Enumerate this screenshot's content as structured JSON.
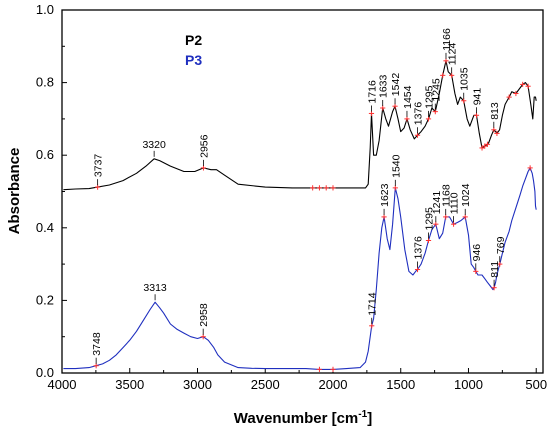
{
  "chart_data": {
    "type": "line",
    "xlabel": "Wavenumber [cm",
    "xlabel_sup": "-1",
    "xlabel_close": "]",
    "ylabel": "Absorbance",
    "xlim": [
      4000,
      450
    ],
    "ylim": [
      0.0,
      1.0
    ],
    "x_reversed": true,
    "grid": false,
    "legend_position": "upper-left-inside",
    "x_ticks": [
      4000,
      3500,
      3000,
      2500,
      2000,
      1500,
      1000,
      500
    ],
    "x_tick_labels": [
      "4000",
      "3500",
      "3000",
      "2500",
      "2000",
      "1500",
      "1000",
      "500"
    ],
    "y_ticks": [
      0.0,
      0.2,
      0.4,
      0.6,
      0.8,
      1.0
    ],
    "y_tick_labels": [
      "0.0",
      "0.2",
      "0.4",
      "0.6",
      "0.8",
      "1.0"
    ],
    "series": [
      {
        "name": "P2",
        "color": "#000000",
        "x": [
          3990,
          3900,
          3800,
          3737,
          3650,
          3550,
          3450,
          3380,
          3320,
          3280,
          3200,
          3100,
          3020,
          2956,
          2900,
          2860,
          2800,
          2700,
          2500,
          2300,
          2150,
          2100,
          2050,
          2000,
          1900,
          1800,
          1760,
          1740,
          1725,
          1716,
          1700,
          1680,
          1660,
          1633,
          1610,
          1590,
          1560,
          1542,
          1520,
          1500,
          1475,
          1454,
          1430,
          1400,
          1376,
          1350,
          1320,
          1295,
          1270,
          1245,
          1215,
          1190,
          1166,
          1150,
          1124,
          1100,
          1080,
          1060,
          1035,
          1010,
          990,
          970,
          960,
          941,
          920,
          900,
          880,
          860,
          850,
          830,
          813,
          800,
          790,
          770,
          750,
          730,
          700,
          680,
          650,
          620,
          600,
          580,
          560,
          540,
          525,
          515,
          505,
          500
        ],
        "y": [
          0.505,
          0.507,
          0.508,
          0.512,
          0.518,
          0.53,
          0.55,
          0.57,
          0.59,
          0.585,
          0.57,
          0.555,
          0.555,
          0.565,
          0.56,
          0.56,
          0.545,
          0.52,
          0.512,
          0.51,
          0.51,
          0.51,
          0.51,
          0.51,
          0.51,
          0.51,
          0.51,
          0.52,
          0.62,
          0.715,
          0.6,
          0.6,
          0.64,
          0.73,
          0.7,
          0.68,
          0.72,
          0.735,
          0.7,
          0.665,
          0.675,
          0.7,
          0.67,
          0.645,
          0.655,
          0.665,
          0.68,
          0.7,
          0.73,
          0.72,
          0.77,
          0.82,
          0.86,
          0.83,
          0.82,
          0.77,
          0.74,
          0.76,
          0.75,
          0.7,
          0.68,
          0.7,
          0.71,
          0.71,
          0.66,
          0.62,
          0.625,
          0.63,
          0.635,
          0.655,
          0.67,
          0.665,
          0.66,
          0.67,
          0.71,
          0.74,
          0.76,
          0.775,
          0.77,
          0.785,
          0.795,
          0.8,
          0.79,
          0.74,
          0.7,
          0.76,
          0.76,
          0.75
        ]
      },
      {
        "name": "P3",
        "color": "#1f2fbf",
        "x": [
          3990,
          3900,
          3800,
          3748,
          3700,
          3650,
          3600,
          3550,
          3500,
          3450,
          3400,
          3350,
          3313,
          3280,
          3250,
          3200,
          3150,
          3100,
          3050,
          3000,
          2958,
          2920,
          2880,
          2850,
          2800,
          2700,
          2600,
          2500,
          2400,
          2300,
          2200,
          2100,
          2000,
          1900,
          1800,
          1760,
          1740,
          1725,
          1714,
          1700,
          1680,
          1660,
          1640,
          1623,
          1600,
          1580,
          1560,
          1540,
          1520,
          1500,
          1470,
          1440,
          1410,
          1390,
          1376,
          1350,
          1320,
          1295,
          1270,
          1241,
          1215,
          1190,
          1168,
          1140,
          1110,
          1080,
          1055,
          1024,
          1000,
          980,
          960,
          946,
          930,
          900,
          880,
          860,
          840,
          820,
          811,
          800,
          790,
          780,
          769,
          750,
          730,
          700,
          680,
          650,
          620,
          600,
          580,
          560,
          545,
          530,
          520,
          510,
          505,
          500
        ],
        "y": [
          0.012,
          0.012,
          0.015,
          0.02,
          0.025,
          0.035,
          0.05,
          0.07,
          0.09,
          0.115,
          0.145,
          0.175,
          0.195,
          0.18,
          0.165,
          0.135,
          0.12,
          0.11,
          0.1,
          0.095,
          0.1,
          0.09,
          0.07,
          0.05,
          0.03,
          0.015,
          0.013,
          0.012,
          0.012,
          0.012,
          0.012,
          0.01,
          0.01,
          0.012,
          0.015,
          0.03,
          0.06,
          0.1,
          0.13,
          0.15,
          0.23,
          0.33,
          0.4,
          0.43,
          0.37,
          0.34,
          0.41,
          0.51,
          0.48,
          0.43,
          0.34,
          0.28,
          0.27,
          0.28,
          0.285,
          0.3,
          0.33,
          0.365,
          0.395,
          0.41,
          0.37,
          0.385,
          0.43,
          0.43,
          0.41,
          0.415,
          0.42,
          0.43,
          0.38,
          0.3,
          0.29,
          0.28,
          0.27,
          0.27,
          0.26,
          0.25,
          0.24,
          0.23,
          0.235,
          0.25,
          0.27,
          0.285,
          0.3,
          0.33,
          0.36,
          0.39,
          0.42,
          0.455,
          0.49,
          0.515,
          0.535,
          0.555,
          0.565,
          0.55,
          0.53,
          0.5,
          0.46,
          0.45
        ]
      }
    ],
    "peak_markers": [
      {
        "series": "P2",
        "x": 3737,
        "y": 0.512
      },
      {
        "series": "P2",
        "x": 2956,
        "y": 0.565
      },
      {
        "series": "P2",
        "x": 2150,
        "y": 0.51
      },
      {
        "series": "P2",
        "x": 2100,
        "y": 0.51
      },
      {
        "series": "P2",
        "x": 2050,
        "y": 0.51
      },
      {
        "series": "P2",
        "x": 2000,
        "y": 0.51
      },
      {
        "series": "P2",
        "x": 1716,
        "y": 0.715
      },
      {
        "series": "P2",
        "x": 1633,
        "y": 0.73
      },
      {
        "series": "P2",
        "x": 1542,
        "y": 0.735
      },
      {
        "series": "P2",
        "x": 1454,
        "y": 0.7
      },
      {
        "series": "P2",
        "x": 1376,
        "y": 0.655
      },
      {
        "series": "P2",
        "x": 1295,
        "y": 0.7
      },
      {
        "series": "P2",
        "x": 1245,
        "y": 0.72
      },
      {
        "series": "P2",
        "x": 1190,
        "y": 0.82
      },
      {
        "series": "P2",
        "x": 1166,
        "y": 0.86
      },
      {
        "series": "P2",
        "x": 1124,
        "y": 0.82
      },
      {
        "series": "P2",
        "x": 1035,
        "y": 0.75
      },
      {
        "series": "P2",
        "x": 941,
        "y": 0.71
      },
      {
        "series": "P2",
        "x": 900,
        "y": 0.62
      },
      {
        "series": "P2",
        "x": 880,
        "y": 0.625
      },
      {
        "series": "P2",
        "x": 860,
        "y": 0.63
      },
      {
        "series": "P2",
        "x": 813,
        "y": 0.67
      },
      {
        "series": "P2",
        "x": 790,
        "y": 0.66
      },
      {
        "series": "P2",
        "x": 700,
        "y": 0.76
      },
      {
        "series": "P2",
        "x": 650,
        "y": 0.77
      },
      {
        "series": "P2",
        "x": 600,
        "y": 0.795
      },
      {
        "series": "P2",
        "x": 560,
        "y": 0.79
      },
      {
        "series": "P3",
        "x": 3748,
        "y": 0.02
      },
      {
        "series": "P3",
        "x": 2958,
        "y": 0.1
      },
      {
        "series": "P3",
        "x": 2100,
        "y": 0.01
      },
      {
        "series": "P3",
        "x": 2000,
        "y": 0.01
      },
      {
        "series": "P3",
        "x": 1714,
        "y": 0.13
      },
      {
        "series": "P3",
        "x": 1623,
        "y": 0.43
      },
      {
        "series": "P3",
        "x": 1540,
        "y": 0.51
      },
      {
        "series": "P3",
        "x": 1376,
        "y": 0.285
      },
      {
        "series": "P3",
        "x": 1295,
        "y": 0.365
      },
      {
        "series": "P3",
        "x": 1241,
        "y": 0.41
      },
      {
        "series": "P3",
        "x": 1168,
        "y": 0.43
      },
      {
        "series": "P3",
        "x": 1110,
        "y": 0.41
      },
      {
        "series": "P3",
        "x": 1024,
        "y": 0.43
      },
      {
        "series": "P3",
        "x": 946,
        "y": 0.28
      },
      {
        "series": "P3",
        "x": 811,
        "y": 0.235
      },
      {
        "series": "P3",
        "x": 769,
        "y": 0.3
      },
      {
        "series": "P3",
        "x": 545,
        "y": 0.565
      }
    ],
    "peak_marker_color": "#ff3030",
    "annotations": [
      {
        "text": "3737",
        "x": 3737,
        "y": 0.512,
        "rotate": true
      },
      {
        "text": "3320",
        "x": 3320,
        "y": 0.59,
        "rotate": false
      },
      {
        "text": "2956",
        "x": 2956,
        "y": 0.565,
        "rotate": true
      },
      {
        "text": "1716",
        "x": 1716,
        "y": 0.715,
        "rotate": true
      },
      {
        "text": "1633",
        "x": 1633,
        "y": 0.73,
        "rotate": true
      },
      {
        "text": "1542",
        "x": 1542,
        "y": 0.735,
        "rotate": true
      },
      {
        "text": "1454",
        "x": 1454,
        "y": 0.7,
        "rotate": true
      },
      {
        "text": "1376",
        "x": 1376,
        "y": 0.655,
        "rotate": true
      },
      {
        "text": "1295",
        "x": 1295,
        "y": 0.7,
        "rotate": true
      },
      {
        "text": "1245",
        "x": 1245,
        "y": 0.72,
        "rotate": true
      },
      {
        "text": "1166",
        "x": 1166,
        "y": 0.86,
        "rotate": true
      },
      {
        "text": "1124",
        "x": 1124,
        "y": 0.82,
        "rotate": true
      },
      {
        "text": "1035",
        "x": 1035,
        "y": 0.75,
        "rotate": true
      },
      {
        "text": "941",
        "x": 941,
        "y": 0.71,
        "rotate": true
      },
      {
        "text": "813",
        "x": 813,
        "y": 0.67,
        "rotate": true
      },
      {
        "text": "3313",
        "x": 3313,
        "y": 0.195,
        "rotate": false
      },
      {
        "text": "3748",
        "x": 3748,
        "y": 0.02,
        "rotate": true
      },
      {
        "text": "2958",
        "x": 2958,
        "y": 0.1,
        "rotate": true
      },
      {
        "text": "1714",
        "x": 1714,
        "y": 0.13,
        "rotate": true
      },
      {
        "text": "1623",
        "x": 1623,
        "y": 0.43,
        "rotate": true
      },
      {
        "text": "1540",
        "x": 1540,
        "y": 0.51,
        "rotate": true
      },
      {
        "text": "1376",
        "x": 1376,
        "y": 0.285,
        "rotate": true
      },
      {
        "text": "1295",
        "x": 1295,
        "y": 0.365,
        "rotate": true
      },
      {
        "text": "1241",
        "x": 1241,
        "y": 0.41,
        "rotate": true
      },
      {
        "text": "1168",
        "x": 1168,
        "y": 0.43,
        "rotate": true
      },
      {
        "text": "1110",
        "x": 1110,
        "y": 0.41,
        "rotate": true
      },
      {
        "text": "1024",
        "x": 1024,
        "y": 0.43,
        "rotate": true
      },
      {
        "text": "946",
        "x": 946,
        "y": 0.28,
        "rotate": true
      },
      {
        "text": "811",
        "x": 811,
        "y": 0.235,
        "rotate": true
      },
      {
        "text": "769",
        "x": 769,
        "y": 0.3,
        "rotate": true
      }
    ]
  }
}
